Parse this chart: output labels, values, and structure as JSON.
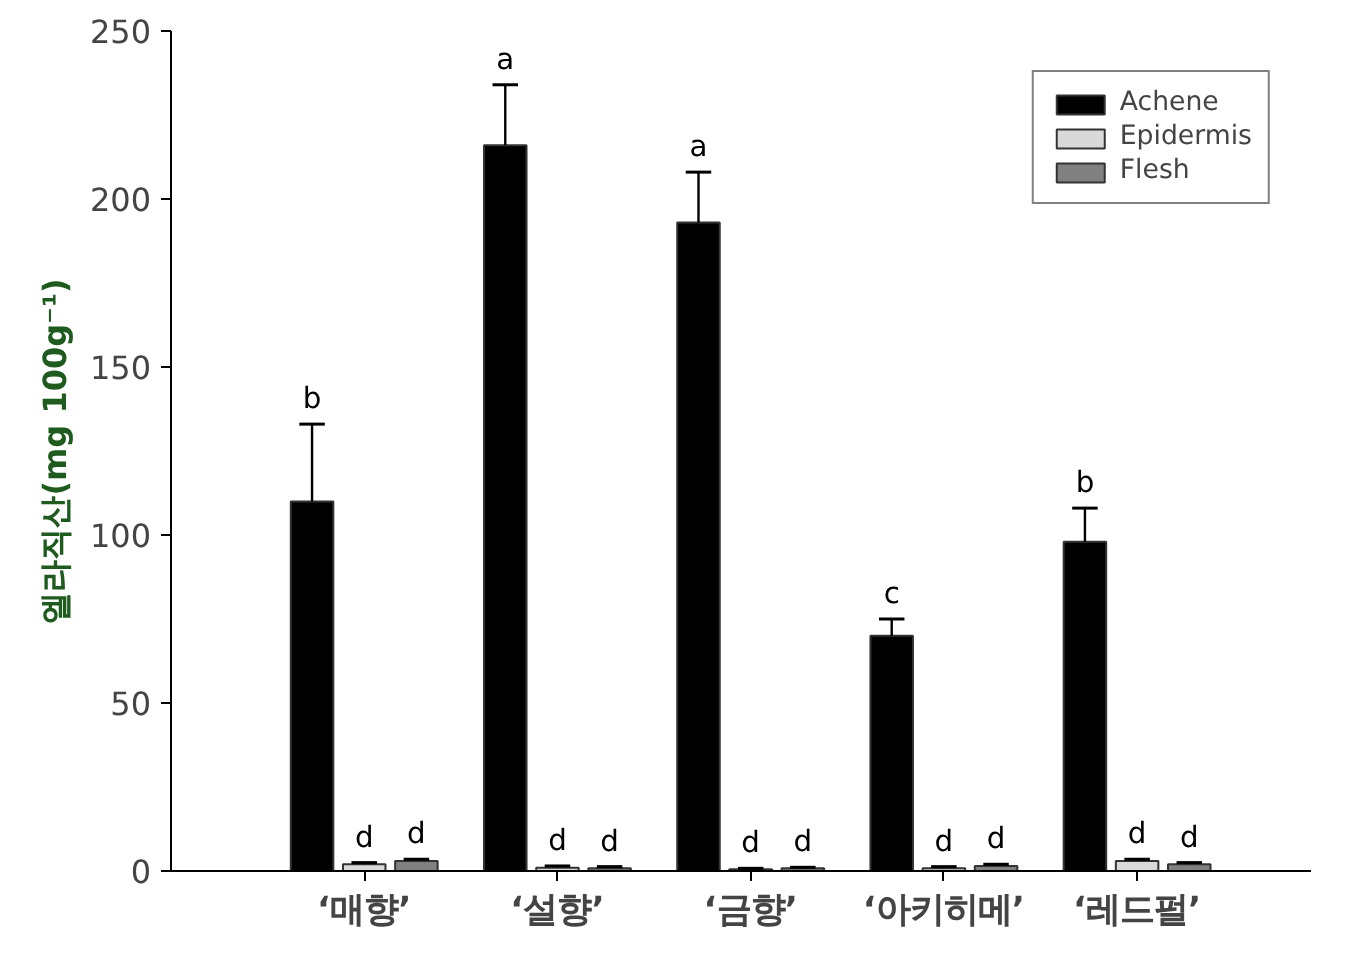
{
  "chart_data": {
    "type": "bar",
    "ylabel": "엘라직산(mg 100g⁻¹)",
    "categories": [
      "‘매향’",
      "‘설향’",
      "‘금향’",
      "‘아키히메’",
      "‘레드펄’"
    ],
    "series": [
      {
        "name": "Achene",
        "color": "#000000",
        "values": [
          110,
          216,
          193,
          70,
          98
        ],
        "errors": [
          23,
          18,
          15,
          5,
          10
        ],
        "value_labels": [
          "b",
          "a",
          "a",
          "c",
          "b"
        ]
      },
      {
        "name": "Epidermis",
        "color": "#d9d9d9",
        "values": [
          2,
          1,
          0.5,
          0.8,
          3
        ],
        "errors": [
          0.5,
          0.5,
          0.3,
          0.5,
          0.5
        ],
        "value_labels": [
          "d",
          "d",
          "d",
          "d",
          "d"
        ]
      },
      {
        "name": "Flesh",
        "color": "#808080",
        "values": [
          3,
          0.8,
          0.8,
          1.5,
          2
        ],
        "errors": [
          0.5,
          0.5,
          0.3,
          0.5,
          0.5
        ],
        "value_labels": [
          "d",
          "d",
          "d",
          "d",
          "d"
        ]
      }
    ],
    "ylim": [
      0,
      250
    ],
    "yticks": [
      0,
      50,
      100,
      150,
      200,
      250
    ],
    "grid": false,
    "legend": "top right"
  }
}
